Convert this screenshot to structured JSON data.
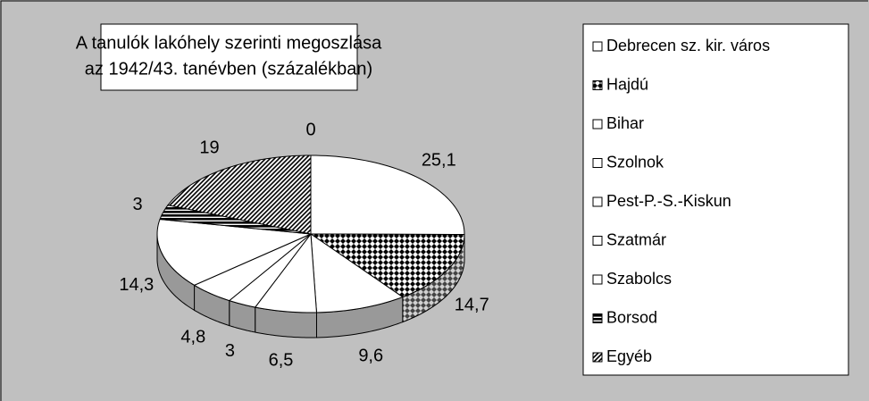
{
  "chart_data": {
    "type": "pie3d",
    "title": [
      "A tanulók lakóhely szerinti megoszlása",
      "az 1942/43. tanévben (százalékban)"
    ],
    "categories": [
      "Debrecen sz. kir. város",
      "Hajdú",
      "Bihar",
      "Szolnok",
      "Pest-P.-S.-Kiskun",
      "Szatmár",
      "Szabolcs",
      "Borsod",
      "Egyéb",
      null
    ],
    "values": [
      25.1,
      14.7,
      9.6,
      6.5,
      3,
      4.8,
      14.3,
      3,
      19,
      0
    ],
    "value_labels": [
      "25,1",
      "14,7",
      "9,6",
      "6,5",
      "3",
      "4,8",
      "14,3",
      "3",
      "19",
      "0"
    ],
    "patterns": [
      "none",
      "cross",
      "none",
      "none",
      "none",
      "none",
      "none",
      "hlines",
      "diag",
      "none"
    ],
    "legend": "right"
  }
}
